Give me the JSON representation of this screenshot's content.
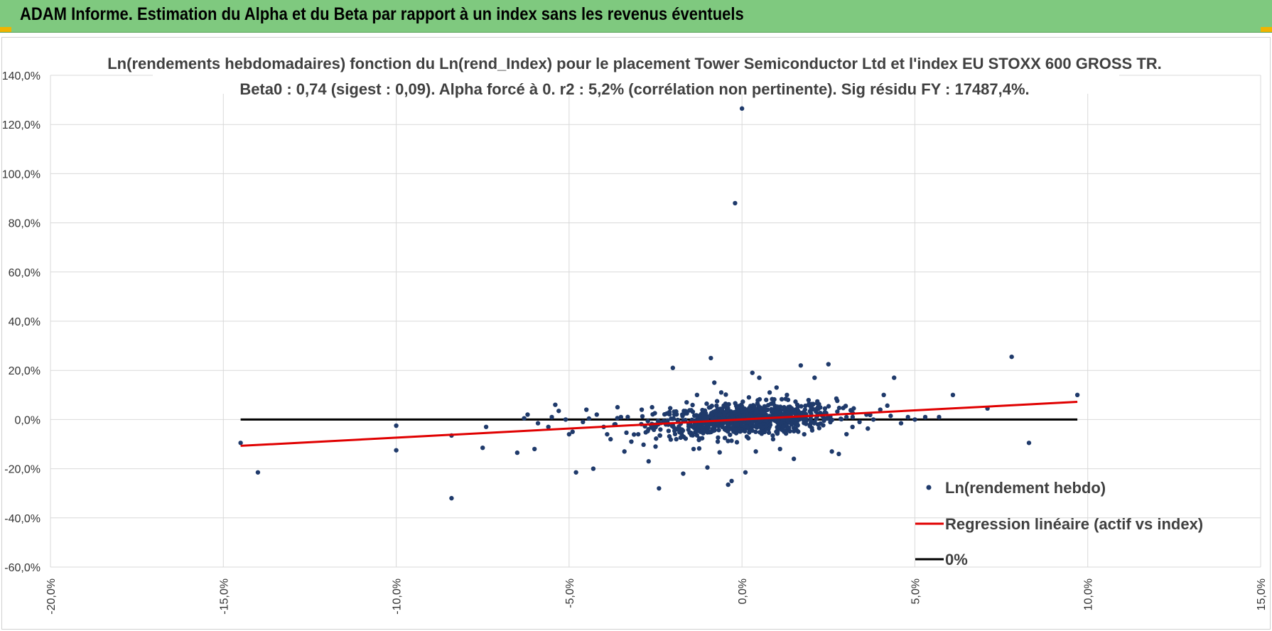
{
  "header": {
    "title": "ADAM Informe. Estimation du Alpha et du Beta par rapport à un index sans les revenus éventuels"
  },
  "colors": {
    "header_bg": "#7fc97f",
    "points": "#1f3a6b",
    "regression": "#e00000",
    "zero_line": "#000000"
  },
  "chart_data": {
    "type": "scatter",
    "title": "Ln(rendements hebdomadaires) fonction du Ln(rend_Index) pour le placement Tower Semiconductor Ltd et l'index EU STOXX 600 GROSS TR.",
    "subtitle": "Beta0 : 0,74 (sigest : 0,09).  Alpha forcé à 0. r2 : 5,2% (corrélation non pertinente). Sig résidu FY : 17487,4%.",
    "xlabel": "",
    "ylabel": "",
    "xlim": [
      -20,
      15
    ],
    "ylim": [
      -60,
      140
    ],
    "x_ticks": [
      "-20,0%",
      "-15,0%",
      "-10,0%",
      "-5,0%",
      "0,0%",
      "5,0%",
      "10,0%",
      "15,0%"
    ],
    "y_ticks": [
      "140,0%",
      "120,0%",
      "100,0%",
      "80,0%",
      "60,0%",
      "40,0%",
      "20,0%",
      "0,0%",
      "-20,0%",
      "-40,0%",
      "-60,0%"
    ],
    "grid": true,
    "legend_position": "bottom-right",
    "legend": [
      "Ln(rendement hebdo)",
      "Regression linéaire (actif vs index)",
      "0%"
    ],
    "series": [
      {
        "name": "Ln(rendement hebdo)",
        "type": "scatter",
        "points": [
          [
            -14.5,
            -9.5
          ],
          [
            -14.0,
            -21.5
          ],
          [
            -10.0,
            -2.5
          ],
          [
            -10.0,
            -12.5
          ],
          [
            -8.4,
            -6.5
          ],
          [
            -8.4,
            -32.0
          ],
          [
            -7.5,
            -11.5
          ],
          [
            -7.4,
            -3.0
          ],
          [
            -6.5,
            -13.5
          ],
          [
            -6.3,
            0.5
          ],
          [
            -6.2,
            2.0
          ],
          [
            -6.0,
            -12.0
          ],
          [
            -5.9,
            -1.5
          ],
          [
            -5.6,
            -3.0
          ],
          [
            -5.5,
            1.0
          ],
          [
            -5.4,
            6.0
          ],
          [
            -5.3,
            3.5
          ],
          [
            -5.1,
            0.0
          ],
          [
            -5.0,
            -6.0
          ],
          [
            -4.9,
            -5.0
          ],
          [
            -4.8,
            -21.5
          ],
          [
            -4.6,
            -1.0
          ],
          [
            -4.5,
            4.0
          ],
          [
            -4.3,
            -20.0
          ],
          [
            -4.2,
            2.0
          ],
          [
            -4.0,
            -3.0
          ],
          [
            -3.9,
            -6.0
          ],
          [
            -3.8,
            -8.0
          ],
          [
            -3.6,
            5.0
          ],
          [
            -3.5,
            1.0
          ],
          [
            -3.4,
            -13.0
          ],
          [
            -3.2,
            -9.0
          ],
          [
            -3.0,
            -6.0
          ],
          [
            -2.9,
            4.0
          ],
          [
            -2.7,
            -17.0
          ],
          [
            -2.6,
            5.0
          ],
          [
            -2.5,
            -11.0
          ],
          [
            -2.4,
            -28.0
          ],
          [
            -2.2,
            -2.0
          ],
          [
            -2.1,
            3.0
          ],
          [
            -2.0,
            21.0
          ],
          [
            -1.9,
            -8.0
          ],
          [
            -1.8,
            -5.0
          ],
          [
            -1.7,
            -22.0
          ],
          [
            -1.6,
            7.0
          ],
          [
            -1.5,
            -2.0
          ],
          [
            -1.4,
            -12.0
          ],
          [
            -1.3,
            10.0
          ],
          [
            -1.2,
            -5.0
          ],
          [
            -1.0,
            -19.5
          ],
          [
            -0.9,
            25.0
          ],
          [
            -0.8,
            15.0
          ],
          [
            -0.7,
            -9.0
          ],
          [
            -0.6,
            11.0
          ],
          [
            -0.5,
            -4.0
          ],
          [
            -0.4,
            -26.5
          ],
          [
            -0.3,
            -25.0
          ],
          [
            -0.2,
            88.0
          ],
          [
            0.0,
            126.5
          ],
          [
            0.1,
            -21.5
          ],
          [
            0.2,
            9.0
          ],
          [
            0.3,
            19.0
          ],
          [
            0.4,
            -13.0
          ],
          [
            0.5,
            17.0
          ],
          [
            0.6,
            -5.0
          ],
          [
            0.7,
            8.0
          ],
          [
            0.8,
            11.0
          ],
          [
            0.9,
            -8.0
          ],
          [
            1.0,
            13.0
          ],
          [
            1.1,
            -12.0
          ],
          [
            1.2,
            -3.0
          ],
          [
            1.3,
            10.0
          ],
          [
            1.5,
            -16.0
          ],
          [
            1.6,
            6.0
          ],
          [
            1.7,
            22.0
          ],
          [
            1.8,
            -6.0
          ],
          [
            2.0,
            5.0
          ],
          [
            2.1,
            17.0
          ],
          [
            2.2,
            -2.0
          ],
          [
            2.4,
            3.0
          ],
          [
            2.5,
            22.5
          ],
          [
            2.6,
            -13.0
          ],
          [
            2.8,
            -14.0
          ],
          [
            3.0,
            5.5
          ],
          [
            3.2,
            1.0
          ],
          [
            3.4,
            -1.0
          ],
          [
            3.6,
            2.0
          ],
          [
            3.8,
            0.0
          ],
          [
            4.0,
            4.0
          ],
          [
            4.1,
            10.0
          ],
          [
            4.3,
            1.5
          ],
          [
            4.4,
            17.0
          ],
          [
            4.6,
            -1.5
          ],
          [
            4.8,
            1.0
          ],
          [
            5.0,
            0.0
          ],
          [
            5.3,
            1.0
          ],
          [
            5.7,
            1.0
          ],
          [
            6.1,
            10.0
          ],
          [
            7.1,
            4.5
          ],
          [
            7.8,
            25.5
          ],
          [
            8.3,
            -9.5
          ],
          [
            9.7,
            10.0
          ]
        ]
      },
      {
        "name": "Regression linéaire (actif vs index)",
        "type": "line",
        "x": [
          -14.5,
          9.7
        ],
        "y": [
          -10.7,
          7.2
        ]
      },
      {
        "name": "0%",
        "type": "line",
        "x": [
          -14.5,
          9.7
        ],
        "y": [
          0,
          0
        ]
      }
    ]
  }
}
